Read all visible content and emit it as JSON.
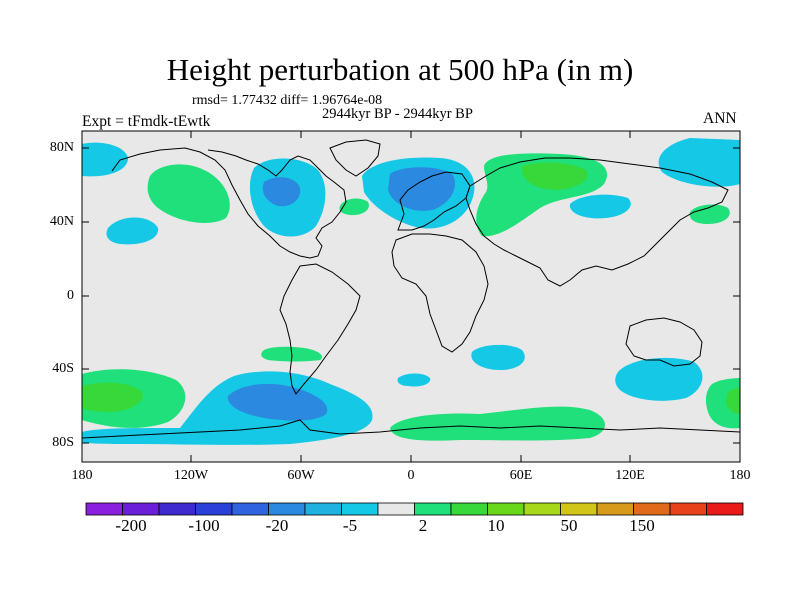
{
  "title": "Height perturbation at 500 hPa (in m)",
  "stats_line": "rmsd= 1.77432 diff= 1.96764e-08",
  "period_line": "2944kyr BP - 2944kyr BP",
  "experiment_line": "Expt = tFmdk-tEwtk",
  "season": "ANN",
  "y_ticks": [
    "80N",
    "40N",
    "0",
    "40S",
    "80S"
  ],
  "x_ticks": [
    "180",
    "120W",
    "60W",
    "0",
    "60E",
    "120E",
    "180"
  ],
  "colorbar": {
    "colors": [
      "#8a1fe0",
      "#6a1fd8",
      "#3f2ad0",
      "#2a40d8",
      "#2f63e0",
      "#2b89e0",
      "#1fb2e0",
      "#15c8e6",
      "#e8e8e8",
      "#1fe07a",
      "#36d83a",
      "#6ad81a",
      "#a8d81a",
      "#d2c51a",
      "#d89a1a",
      "#e06a1a",
      "#e8421a",
      "#e81a1a"
    ],
    "labels": [
      "-200",
      "-100",
      "-20",
      "-5",
      "2",
      "10",
      "50",
      "150"
    ]
  },
  "regions": [
    {
      "name": "cyan-north-pacific-west",
      "color": "#15c8e6"
    },
    {
      "name": "green-north-pacific",
      "color": "#1fe07a"
    },
    {
      "name": "cyan-north-america",
      "color": "#15c8e6"
    },
    {
      "name": "blue-north-america",
      "color": "#2b89e0"
    },
    {
      "name": "cyan-north-atlantic",
      "color": "#15c8e6"
    },
    {
      "name": "blue-scandinavia",
      "color": "#2b89e0"
    },
    {
      "name": "green-siberia",
      "color": "#1fe07a"
    },
    {
      "name": "bright-green-siberia",
      "color": "#36d83a"
    },
    {
      "name": "cyan-south-pacific",
      "color": "#15c8e6"
    },
    {
      "name": "blue-drake-passage",
      "color": "#2b89e0"
    },
    {
      "name": "green-south-pacific-west",
      "color": "#1fe07a"
    },
    {
      "name": "cyan-south-australia",
      "color": "#15c8e6"
    },
    {
      "name": "green-southern-ocean-east",
      "color": "#1fe07a"
    }
  ]
}
